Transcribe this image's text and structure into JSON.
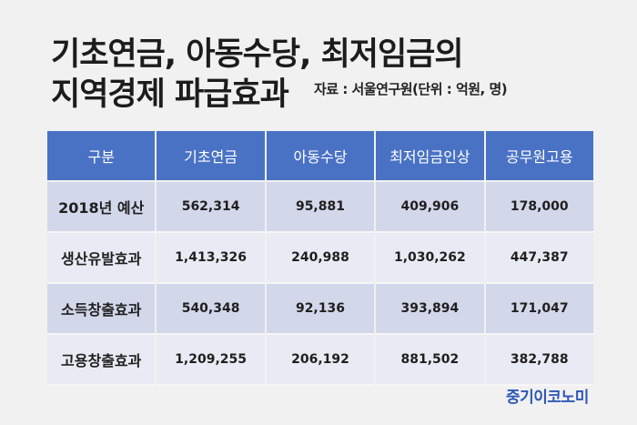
{
  "title": {
    "line1": "기초연금, 아동수당, 최저임금의",
    "line2": "지역경제 파급효과"
  },
  "source": "자료 : 서울연구원(단위 : 억원, 명)",
  "table": {
    "headers": [
      "구분",
      "기초연금",
      "아동수당",
      "최저임금인상",
      "공무원고용"
    ],
    "rows": [
      [
        "2018년 예산",
        "562,314",
        "95,881",
        "409,906",
        "178,000"
      ],
      [
        "생산유발효과",
        "1,413,326",
        "240,988",
        "1,030,262",
        "447,387"
      ],
      [
        "소득창출효과",
        "540,348",
        "92,136",
        "393,894",
        "171,047"
      ],
      [
        "고용창출효과",
        "1,209,255",
        "206,192",
        "881,502",
        "382,788"
      ]
    ]
  },
  "brand": "중기이코노미"
}
